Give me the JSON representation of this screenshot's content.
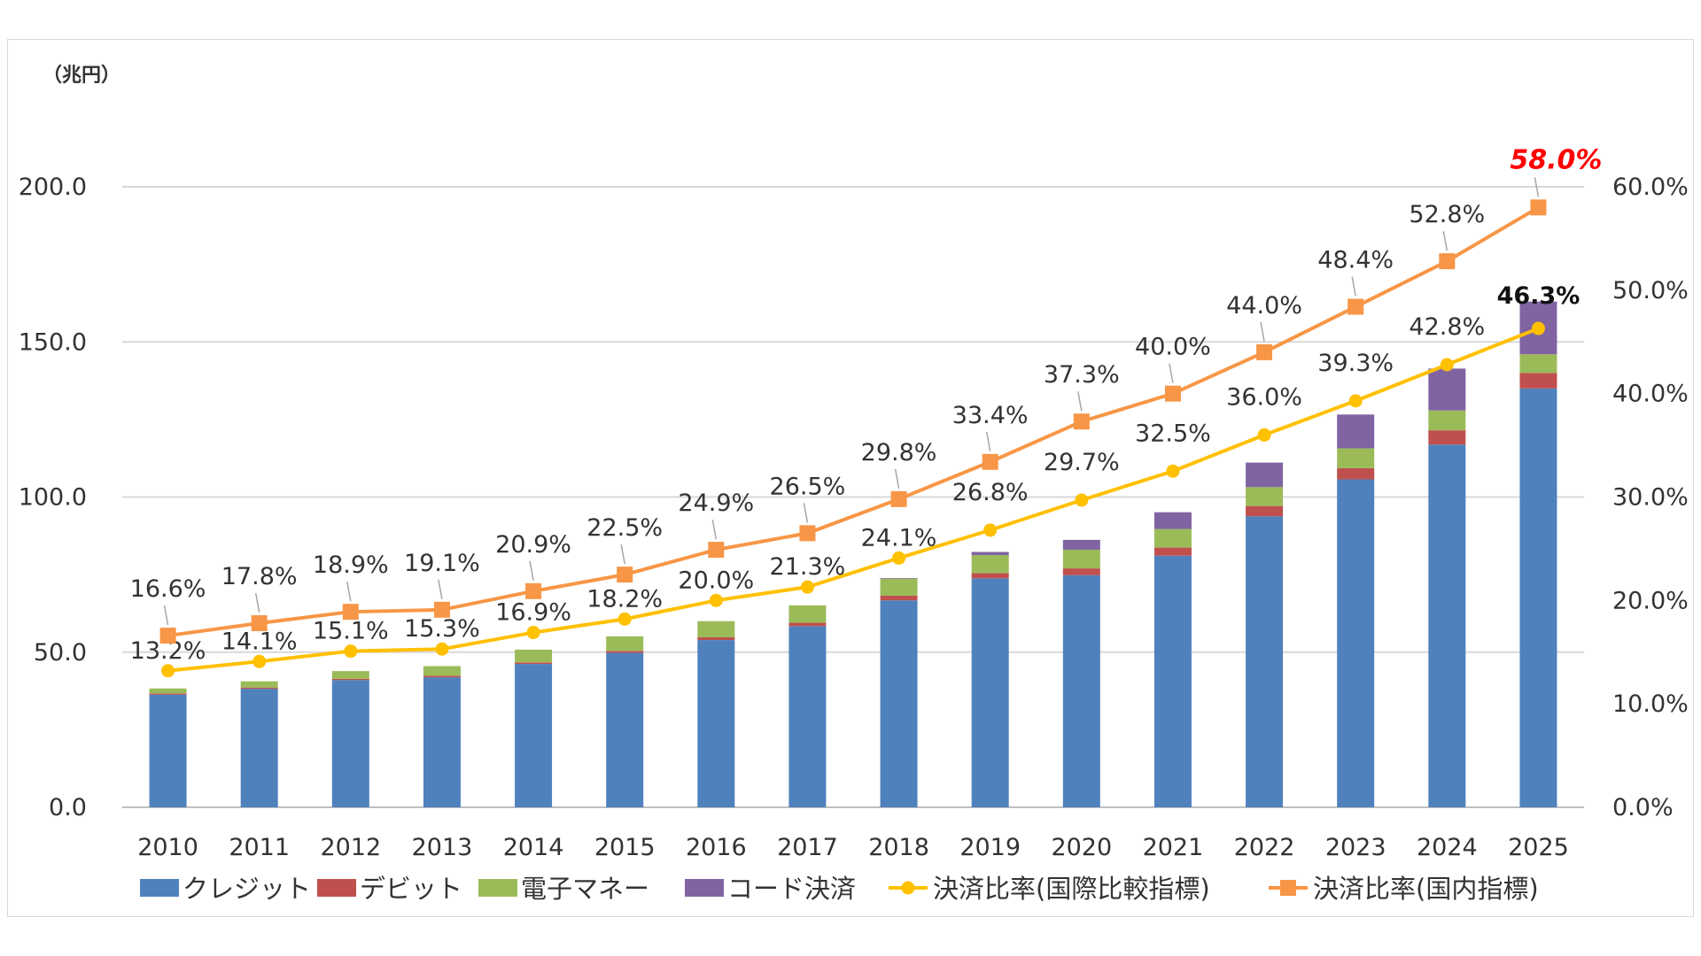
{
  "chart_data": {
    "type": "bar",
    "stacked": true,
    "unit_label": "（兆円）",
    "categories": [
      "2010",
      "2011",
      "2012",
      "2013",
      "2014",
      "2015",
      "2016",
      "2017",
      "2018",
      "2019",
      "2020",
      "2021",
      "2022",
      "2023",
      "2024",
      "2025"
    ],
    "y_left": {
      "lim": [
        0,
        200
      ],
      "ticks": [
        "0.0",
        "50.0",
        "100.0",
        "150.0",
        "200.0"
      ]
    },
    "y_right": {
      "lim": [
        0,
        60
      ],
      "ticks": [
        "0.0%",
        "10.0%",
        "20.0%",
        "30.0%",
        "40.0%",
        "50.0%",
        "60.0%"
      ]
    },
    "grid": true,
    "legend_position": "bottom",
    "bar_series": [
      {
        "name": "クレジット",
        "color": "#4f81bd",
        "values": [
          36.3,
          38.2,
          41.0,
          41.9,
          46.2,
          49.8,
          53.9,
          58.4,
          66.7,
          73.8,
          74.8,
          81.1,
          93.8,
          105.7,
          116.9,
          135.0
        ]
      },
      {
        "name": "デビット",
        "color": "#c0504d",
        "values": [
          0.4,
          0.4,
          0.4,
          0.5,
          0.5,
          0.6,
          0.9,
          1.1,
          1.5,
          1.7,
          2.2,
          2.6,
          3.3,
          3.6,
          4.6,
          5.0
        ]
      },
      {
        "name": "電子マネー",
        "color": "#9bbb59",
        "values": [
          1.6,
          2.0,
          2.5,
          3.1,
          4.1,
          4.7,
          5.2,
          5.6,
          5.5,
          5.8,
          6.0,
          6.0,
          6.1,
          6.4,
          6.4,
          6.0
        ]
      },
      {
        "name": "コード決済",
        "color": "#8064a2",
        "values": [
          0,
          0,
          0,
          0,
          0,
          0,
          0,
          0,
          0.2,
          1.0,
          3.2,
          5.4,
          7.9,
          10.9,
          13.5,
          17.0
        ]
      }
    ],
    "line_series": [
      {
        "name": "決済比率(国際比較指標)",
        "color": "#ffc000",
        "marker": "circle",
        "values": [
          13.2,
          14.1,
          15.1,
          15.3,
          16.9,
          18.2,
          20.0,
          21.3,
          24.1,
          26.8,
          29.7,
          32.5,
          36.0,
          39.3,
          42.8,
          46.3
        ],
        "labels": [
          "13.2%",
          "14.1%",
          "15.1%",
          "15.3%",
          "16.9%",
          "18.2%",
          "20.0%",
          "21.3%",
          "24.1%",
          "26.8%",
          "29.7%",
          "32.5%",
          "36.0%",
          "39.3%",
          "42.8%",
          "46.3%"
        ]
      },
      {
        "name": "決済比率(国内指標)",
        "color": "#f79646",
        "marker": "square",
        "values": [
          16.6,
          17.8,
          18.9,
          19.1,
          20.9,
          22.5,
          24.9,
          26.5,
          29.8,
          33.4,
          37.3,
          40.0,
          44.0,
          48.4,
          52.8,
          58.0
        ],
        "labels": [
          "16.6%",
          "17.8%",
          "18.9%",
          "19.1%",
          "20.9%",
          "22.5%",
          "24.9%",
          "26.5%",
          "29.8%",
          "33.4%",
          "37.3%",
          "40.0%",
          "44.0%",
          "48.4%",
          "52.8%",
          "58.0%"
        ]
      }
    ]
  }
}
